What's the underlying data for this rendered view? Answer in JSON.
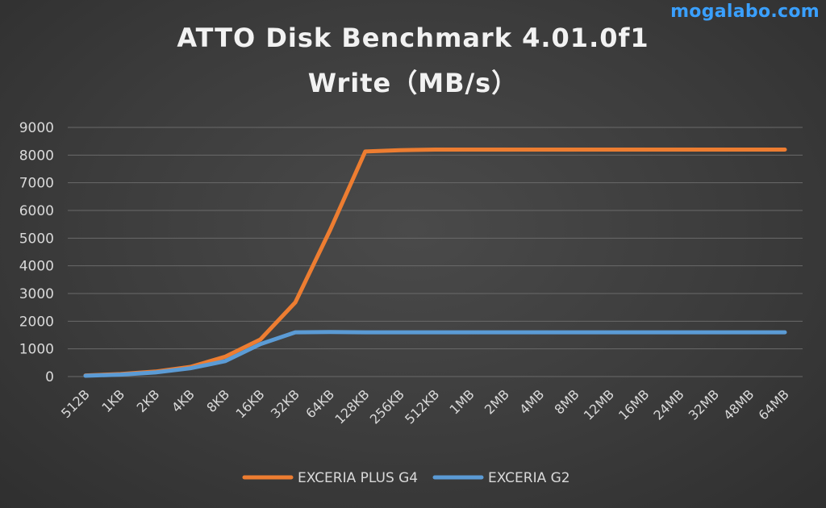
{
  "watermark": "mogalabo.com",
  "chart_data": {
    "type": "line",
    "title": "ATTO Disk Benchmark 4.01.0f1",
    "subtitle": "Write（MB/s）",
    "xlabel": "",
    "ylabel": "",
    "ylim": [
      0,
      9000
    ],
    "yticks": [
      0,
      1000,
      2000,
      3000,
      4000,
      5000,
      6000,
      7000,
      8000,
      9000
    ],
    "grid": true,
    "legend_position": "bottom",
    "categories": [
      "512B",
      "1KB",
      "2KB",
      "4KB",
      "8KB",
      "16KB",
      "32KB",
      "64KB",
      "128KB",
      "256KB",
      "512KB",
      "1MB",
      "2MB",
      "4MB",
      "8MB",
      "12MB",
      "16MB",
      "24MB",
      "32MB",
      "48MB",
      "64MB"
    ],
    "series": [
      {
        "name": "EXCERIA PLUS G4",
        "color": "#ed7d31",
        "values": [
          40,
          90,
          180,
          350,
          720,
          1340,
          2680,
          5300,
          8130,
          8180,
          8200,
          8200,
          8200,
          8200,
          8200,
          8200,
          8200,
          8200,
          8200,
          8200,
          8200
        ]
      },
      {
        "name": "EXCERIA G2",
        "color": "#5b9bd5",
        "values": [
          30,
          70,
          150,
          300,
          560,
          1170,
          1600,
          1610,
          1600,
          1600,
          1600,
          1600,
          1600,
          1600,
          1600,
          1600,
          1600,
          1600,
          1600,
          1600,
          1600
        ]
      }
    ]
  }
}
